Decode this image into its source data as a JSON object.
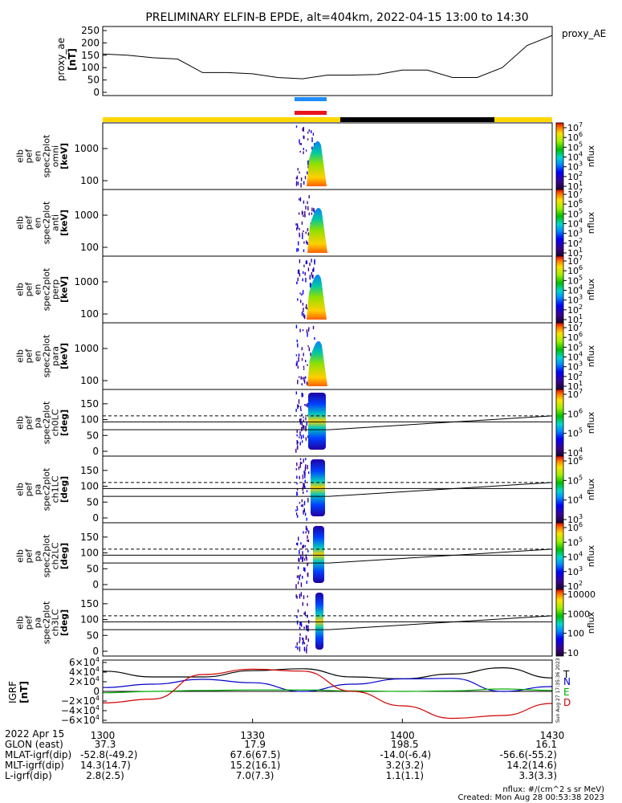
{
  "title": "PRELIMINARY ELFIN-B EPDE, alt=404km, 2022-04-15 13:00 to 14:30",
  "colors": {
    "sci_zone": "#ffd800",
    "gap": "#000000",
    "ind_blue": "#1e8cff",
    "ind_red": "#e8141e",
    "t": "#000000",
    "n": "#0000c8",
    "e": "#00aa00",
    "d": "#d00000"
  },
  "ae_panel": {
    "ylabel": [
      "proxy_ae",
      "[nT]"
    ],
    "legend": "proxy_AE",
    "ticks": [
      "250",
      "200",
      "150",
      "100",
      "50",
      "0"
    ]
  },
  "energy_panels": [
    {
      "ylabel": [
        "elb",
        "pef",
        "en",
        "spec2plot",
        "omni",
        "[keV]"
      ],
      "ticks": [
        "1000",
        "100"
      ],
      "cb_label": "nflux"
    },
    {
      "ylabel": [
        "elb",
        "pef",
        "en",
        "spec2plot",
        "anti",
        "[keV]"
      ],
      "ticks": [
        "1000",
        "100"
      ],
      "cb_label": "nflux"
    },
    {
      "ylabel": [
        "elb",
        "pef",
        "en",
        "spec2plot",
        "perp",
        "[keV]"
      ],
      "ticks": [
        "1000",
        "100"
      ],
      "cb_label": "nflux"
    },
    {
      "ylabel": [
        "elb",
        "pef",
        "en",
        "spec2plot",
        "para",
        "[keV]"
      ],
      "ticks": [
        "1000",
        "100"
      ],
      "cb_label": "nflux"
    }
  ],
  "cb_energy": {
    "main": "10",
    "sups": [
      "7",
      "6",
      "5",
      "4",
      "3",
      "2",
      "1"
    ]
  },
  "pa_panels": [
    {
      "ylabel": [
        "elb",
        "pef",
        "pa",
        "spec2plot",
        "ch0LC",
        "[deg]"
      ],
      "ticks": [
        "150",
        "100",
        "50",
        "0"
      ],
      "cb_label": "nflux",
      "cb": [
        {
          "m": "10",
          "s": "7"
        },
        {
          "m": "10",
          "s": "6"
        },
        {
          "m": "10",
          "s": "5"
        },
        {
          "m": "10",
          "s": "4"
        }
      ]
    },
    {
      "ylabel": [
        "elb",
        "pef",
        "pa",
        "spec2plot",
        "ch1LC",
        "[deg]"
      ],
      "ticks": [
        "150",
        "100",
        "50",
        "0"
      ],
      "cb_label": "nflux",
      "cb": [
        {
          "m": "10",
          "s": "6"
        },
        {
          "m": "10",
          "s": "5"
        },
        {
          "m": "10",
          "s": "4"
        },
        {
          "m": "10",
          "s": "3"
        }
      ]
    },
    {
      "ylabel": [
        "elb",
        "pef",
        "pa",
        "spec2plot",
        "ch2LC",
        "[deg]"
      ],
      "ticks": [
        "150",
        "100",
        "50",
        "0"
      ],
      "cb_label": "nflux",
      "cb": [
        {
          "m": "10",
          "s": "6"
        },
        {
          "m": "10",
          "s": "5"
        },
        {
          "m": "10",
          "s": "4"
        },
        {
          "m": "10",
          "s": "3"
        },
        {
          "m": "10",
          "s": "2"
        }
      ]
    },
    {
      "ylabel": [
        "elb",
        "pef",
        "pa",
        "spec2plot",
        "ch3LC",
        "[deg]"
      ],
      "ticks": [
        "150",
        "100",
        "50",
        "0"
      ],
      "cb_label": "nflux",
      "cb": [
        {
          "m": "10000",
          "s": ""
        },
        {
          "m": "1000",
          "s": ""
        },
        {
          "m": "100",
          "s": ""
        },
        {
          "m": "10",
          "s": ""
        }
      ]
    }
  ],
  "igrf_panel": {
    "ylabel": [
      "IGRF",
      "[nT]"
    ],
    "ticks": [
      {
        "c": "6",
        "s": "4",
        "neg": false
      },
      {
        "c": "4",
        "s": "4",
        "neg": false
      },
      {
        "c": "2",
        "s": "4",
        "neg": false
      },
      {
        "c": "",
        "s": "",
        "neg": false
      },
      {
        "c": "2",
        "s": "4",
        "neg": true
      },
      {
        "c": "4",
        "s": "4",
        "neg": true
      },
      {
        "c": "6",
        "s": "4",
        "neg": true
      }
    ],
    "legend": [
      "T",
      "N",
      "E",
      "D"
    ],
    "stamp": "Sun Aug 27 17:35:36 2023"
  },
  "chart_data": {
    "type": "line",
    "title": "PRELIMINARY ELFIN-B EPDE, alt=404km, 2022-04-15 13:00 to 14:30",
    "x_axis": {
      "label": "2022 Apr 15",
      "ticks": [
        "1300",
        "1330",
        "1400",
        "1430"
      ],
      "range_minutes": [
        0,
        90
      ]
    },
    "proxy_ae": {
      "ylim": [
        0,
        260
      ],
      "x_min": [
        0,
        5,
        10,
        15,
        20,
        25,
        30,
        35,
        40,
        45,
        50,
        55,
        60,
        65,
        70,
        75,
        80,
        85,
        90
      ],
      "values": [
        155,
        150,
        140,
        135,
        80,
        80,
        75,
        60,
        55,
        70,
        70,
        72,
        90,
        90,
        60,
        60,
        100,
        190,
        230
      ]
    },
    "energy_ylim_keV": [
      60,
      6000
    ],
    "pa_ylim_deg": [
      0,
      180
    ],
    "igrf": {
      "ylim": [
        -65000,
        65000
      ],
      "x_min": [
        0,
        10,
        20,
        30,
        40,
        50,
        60,
        70,
        80,
        90
      ],
      "series": [
        {
          "name": "T",
          "values": [
            42000,
            30000,
            30000,
            43000,
            47000,
            30000,
            26000,
            36000,
            49000,
            28000
          ]
        },
        {
          "name": "N",
          "values": [
            8000,
            15000,
            25000,
            18000,
            0,
            15000,
            26000,
            27000,
            0,
            10000
          ]
        },
        {
          "name": "E",
          "values": [
            -3000,
            0,
            2000,
            3000,
            3000,
            1000,
            0,
            1000,
            5000,
            2000
          ]
        },
        {
          "name": "D",
          "values": [
            -24000,
            -16000,
            35000,
            46000,
            42000,
            0,
            -30000,
            -56000,
            -50000,
            -25000
          ]
        }
      ]
    },
    "footer": {
      "header": [
        "2022 Apr 15",
        "1300",
        "1330",
        "1400",
        "1430"
      ],
      "rows": [
        {
          "label": "GLON (east)",
          "values": [
            "37.3",
            "17.9",
            "198.5",
            "16.1"
          ]
        },
        {
          "label": "MLAT-igrf(dip)",
          "values": [
            "-52.8(-49.2)",
            "67.6(67.5)",
            "-14.0(-6.4)",
            "-56.6(-55.2)"
          ]
        },
        {
          "label": "MLT-igrf(dip)",
          "values": [
            "14.3(14.7)",
            "15.2(16.1)",
            "3.2(3.2)",
            "14.2(14.6)"
          ]
        },
        {
          "label": "L-igrf(dip)",
          "values": [
            "2.8(2.5)",
            "7.0(7.3)",
            "1.1(1.1)",
            "3.3(3.3)"
          ]
        }
      ]
    },
    "notes": [
      "nflux: #/(cm^2 s sr MeV)",
      "Created: Mon Aug 28 00:53:38 2023"
    ]
  }
}
